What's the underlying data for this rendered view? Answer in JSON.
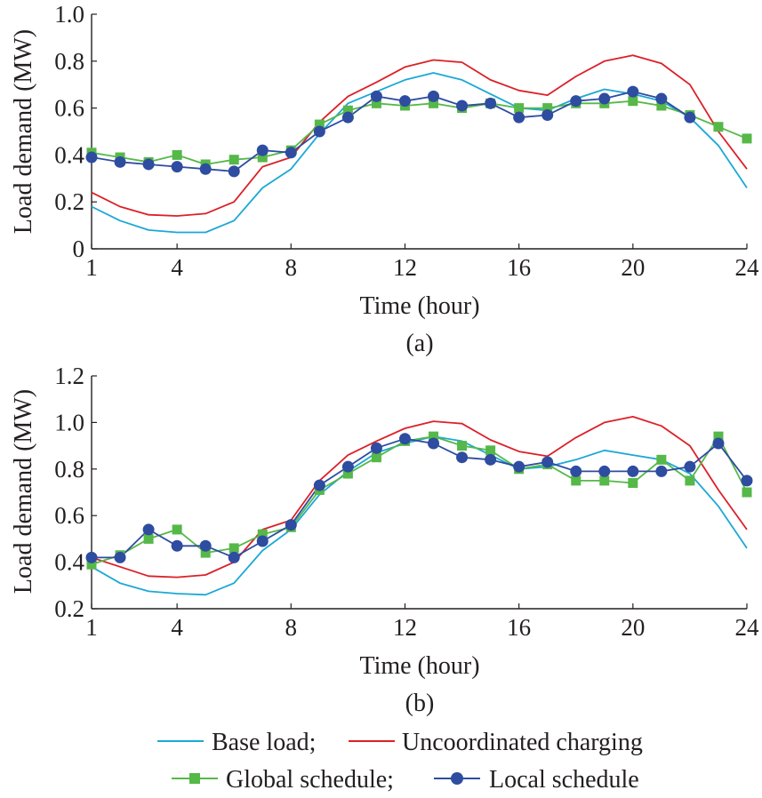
{
  "chart_data": [
    {
      "type": "line",
      "panel_label": "(a)",
      "xlabel": "Time (hour)",
      "ylabel": "Load demand (MW)",
      "xlim": [
        1,
        24
      ],
      "ylim": [
        0,
        1.0
      ],
      "xticks": [
        1,
        4,
        8,
        12,
        16,
        20,
        24
      ],
      "yticks": [
        0,
        0.2,
        0.4,
        0.6,
        0.8,
        1.0
      ],
      "ytick_labels": [
        "0",
        "0.2",
        "0.4",
        "0.6",
        "0.8",
        "1.0"
      ],
      "grid": false,
      "x": [
        1,
        2,
        3,
        4,
        5,
        6,
        7,
        8,
        9,
        10,
        11,
        12,
        13,
        14,
        15,
        16,
        17,
        18,
        19,
        20,
        21,
        22,
        23,
        24
      ],
      "series": [
        {
          "name": "Base load",
          "color": "#1ba8d6",
          "marker": "none",
          "values": [
            0.18,
            0.12,
            0.08,
            0.07,
            0.07,
            0.12,
            0.26,
            0.34,
            0.49,
            0.62,
            0.67,
            0.72,
            0.75,
            0.72,
            0.66,
            0.6,
            0.59,
            0.64,
            0.68,
            0.66,
            0.63,
            0.56,
            0.44,
            0.26
          ]
        },
        {
          "name": "Uncoordinated charging",
          "color": "#dc2027",
          "marker": "none",
          "values": [
            0.24,
            0.18,
            0.145,
            0.14,
            0.15,
            0.2,
            0.35,
            0.39,
            0.54,
            0.65,
            0.71,
            0.775,
            0.805,
            0.795,
            0.72,
            0.675,
            0.655,
            0.735,
            0.8,
            0.825,
            0.79,
            0.7,
            0.5,
            0.34
          ]
        },
        {
          "name": "Global schedule",
          "color": "#55b848",
          "marker": "square",
          "values": [
            0.41,
            0.39,
            0.37,
            0.4,
            0.36,
            0.38,
            0.39,
            0.42,
            0.53,
            0.59,
            0.62,
            0.61,
            0.62,
            0.6,
            0.62,
            0.6,
            0.6,
            0.62,
            0.62,
            0.63,
            0.61,
            0.57,
            0.52,
            0.47
          ]
        },
        {
          "name": "Local schedule",
          "color": "#2e4ca0",
          "marker": "circle",
          "values": [
            0.39,
            0.37,
            0.36,
            0.35,
            0.34,
            0.33,
            0.42,
            0.41,
            0.5,
            0.56,
            0.65,
            0.63,
            0.65,
            0.61,
            0.62,
            0.56,
            0.57,
            0.63,
            0.64,
            0.67,
            0.64,
            0.56,
            null,
            null
          ]
        }
      ]
    },
    {
      "type": "line",
      "panel_label": "(b)",
      "xlabel": "Time (hour)",
      "ylabel": "Load demand (MW)",
      "xlim": [
        1,
        24
      ],
      "ylim": [
        0.2,
        1.2
      ],
      "xticks": [
        1,
        4,
        8,
        12,
        16,
        20,
        24
      ],
      "yticks": [
        0.2,
        0.4,
        0.6,
        0.8,
        1.0,
        1.2
      ],
      "ytick_labels": [
        "0.2",
        "0.4",
        "0.6",
        "0.8",
        "1.0",
        "1.2"
      ],
      "grid": false,
      "x": [
        1,
        2,
        3,
        4,
        5,
        6,
        7,
        8,
        9,
        10,
        11,
        12,
        13,
        14,
        15,
        16,
        17,
        18,
        19,
        20,
        21,
        22,
        23,
        24
      ],
      "series": [
        {
          "name": "Base load",
          "color": "#1ba8d6",
          "marker": "none",
          "values": [
            0.38,
            0.31,
            0.275,
            0.265,
            0.26,
            0.31,
            0.45,
            0.54,
            0.69,
            0.79,
            0.87,
            0.91,
            0.94,
            0.92,
            0.86,
            0.8,
            0.81,
            0.84,
            0.88,
            0.86,
            0.84,
            0.78,
            0.64,
            0.46
          ]
        },
        {
          "name": "Uncoordinated charging",
          "color": "#dc2027",
          "marker": "none",
          "values": [
            0.42,
            0.38,
            0.34,
            0.335,
            0.345,
            0.4,
            0.54,
            0.58,
            0.75,
            0.86,
            0.92,
            0.975,
            1.005,
            0.995,
            0.925,
            0.875,
            0.855,
            0.935,
            1.0,
            1.025,
            0.985,
            0.9,
            0.71,
            0.54
          ]
        },
        {
          "name": "Global schedule",
          "color": "#55b848",
          "marker": "square",
          "values": [
            0.39,
            0.43,
            0.5,
            0.54,
            0.44,
            0.46,
            0.52,
            0.55,
            0.71,
            0.78,
            0.85,
            0.92,
            0.94,
            0.9,
            0.88,
            0.8,
            0.82,
            0.75,
            0.75,
            0.74,
            0.84,
            0.75,
            0.94,
            0.7
          ]
        },
        {
          "name": "Local schedule",
          "color": "#2e4ca0",
          "marker": "circle",
          "values": [
            0.42,
            0.42,
            0.54,
            0.47,
            0.47,
            0.42,
            0.49,
            0.56,
            0.73,
            0.81,
            0.89,
            0.93,
            0.91,
            0.85,
            0.84,
            0.81,
            0.83,
            0.79,
            0.79,
            0.79,
            0.79,
            0.81,
            0.91,
            0.75
          ]
        }
      ]
    }
  ],
  "legend": {
    "row1": [
      {
        "label": "Base load;",
        "color": "#1ba8d6",
        "marker": "none"
      },
      {
        "label": "Uncoordinated charging",
        "color": "#dc2027",
        "marker": "none"
      }
    ],
    "row2": [
      {
        "label": "Global schedule;",
        "color": "#55b848",
        "marker": "square"
      },
      {
        "label": "Local schedule",
        "color": "#2e4ca0",
        "marker": "circle"
      }
    ]
  }
}
